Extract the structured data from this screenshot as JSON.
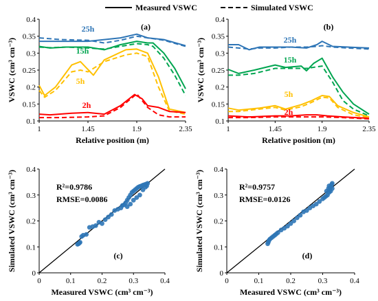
{
  "legend": {
    "measured_label": "Measured VSWC",
    "simulated_label": "Simulated VSWC"
  },
  "chart_data": [
    {
      "type": "line",
      "panel": "(a)",
      "xlabel": "Relative position (m)",
      "ylabel": "VSWC (cm³ cm⁻³)",
      "xlim": [
        1,
        2.35
      ],
      "ylim": [
        0.1,
        0.4
      ],
      "xticks": [
        1,
        1.45,
        1.9,
        2.35
      ],
      "yticks": [
        0.1,
        0.15,
        0.2,
        0.25,
        0.3,
        0.35,
        0.4
      ],
      "grid": false,
      "series": [
        {
          "name": "25h",
          "color": "#2e75b6",
          "measured": [
            [
              1.0,
              0.335
            ],
            [
              1.2,
              0.335
            ],
            [
              1.45,
              0.335
            ],
            [
              1.6,
              0.34
            ],
            [
              1.75,
              0.345
            ],
            [
              1.9,
              0.356
            ],
            [
              2.0,
              0.345
            ],
            [
              2.15,
              0.34
            ],
            [
              2.35,
              0.322
            ]
          ],
          "simulated": [
            [
              1.0,
              0.345
            ],
            [
              1.2,
              0.34
            ],
            [
              1.45,
              0.338
            ],
            [
              1.6,
              0.33
            ],
            [
              1.75,
              0.338
            ],
            [
              1.9,
              0.35
            ],
            [
              2.0,
              0.345
            ],
            [
              2.15,
              0.338
            ],
            [
              2.35,
              0.32
            ]
          ]
        },
        {
          "name": "15h",
          "color": "#00a550",
          "measured": [
            [
              1.0,
              0.32
            ],
            [
              1.1,
              0.315
            ],
            [
              1.25,
              0.318
            ],
            [
              1.45,
              0.318
            ],
            [
              1.6,
              0.31
            ],
            [
              1.75,
              0.325
            ],
            [
              1.9,
              0.335
            ],
            [
              2.0,
              0.33
            ],
            [
              2.05,
              0.33
            ],
            [
              2.15,
              0.3
            ],
            [
              2.25,
              0.255
            ],
            [
              2.35,
              0.195
            ]
          ],
          "simulated": [
            [
              1.0,
              0.318
            ],
            [
              1.1,
              0.316
            ],
            [
              1.25,
              0.318
            ],
            [
              1.45,
              0.315
            ],
            [
              1.6,
              0.312
            ],
            [
              1.75,
              0.32
            ],
            [
              1.9,
              0.328
            ],
            [
              2.0,
              0.325
            ],
            [
              2.05,
              0.32
            ],
            [
              2.15,
              0.285
            ],
            [
              2.25,
              0.235
            ],
            [
              2.35,
              0.175
            ]
          ]
        },
        {
          "name": "5h",
          "color": "#ffc000",
          "measured": [
            [
              1.0,
              0.205
            ],
            [
              1.05,
              0.175
            ],
            [
              1.15,
              0.2
            ],
            [
              1.3,
              0.265
            ],
            [
              1.38,
              0.275
            ],
            [
              1.5,
              0.235
            ],
            [
              1.6,
              0.28
            ],
            [
              1.8,
              0.31
            ],
            [
              1.9,
              0.312
            ],
            [
              2.0,
              0.3
            ],
            [
              2.1,
              0.23
            ],
            [
              2.2,
              0.135
            ],
            [
              2.35,
              0.125
            ]
          ],
          "simulated": [
            [
              1.0,
              0.19
            ],
            [
              1.05,
              0.17
            ],
            [
              1.15,
              0.19
            ],
            [
              1.3,
              0.245
            ],
            [
              1.38,
              0.25
            ],
            [
              1.45,
              0.245
            ],
            [
              1.6,
              0.275
            ],
            [
              1.8,
              0.295
            ],
            [
              1.9,
              0.3
            ],
            [
              2.0,
              0.29
            ],
            [
              2.1,
              0.2
            ],
            [
              2.2,
              0.13
            ],
            [
              2.35,
              0.12
            ]
          ]
        },
        {
          "name": "2h",
          "color": "#ff0000",
          "measured": [
            [
              1.0,
              0.12
            ],
            [
              1.1,
              0.118
            ],
            [
              1.3,
              0.123
            ],
            [
              1.45,
              0.125
            ],
            [
              1.6,
              0.12
            ],
            [
              1.75,
              0.145
            ],
            [
              1.88,
              0.178
            ],
            [
              1.95,
              0.165
            ],
            [
              2.0,
              0.145
            ],
            [
              2.1,
              0.14
            ],
            [
              2.2,
              0.128
            ],
            [
              2.35,
              0.125
            ]
          ],
          "simulated": [
            [
              1.0,
              0.11
            ],
            [
              1.2,
              0.11
            ],
            [
              1.45,
              0.112
            ],
            [
              1.6,
              0.115
            ],
            [
              1.75,
              0.14
            ],
            [
              1.9,
              0.18
            ],
            [
              2.0,
              0.14
            ],
            [
              2.1,
              0.118
            ],
            [
              2.2,
              0.112
            ],
            [
              2.35,
              0.112
            ]
          ]
        }
      ]
    },
    {
      "type": "line",
      "panel": "(b)",
      "xlabel": "Relative position (m)",
      "ylabel": "VSWC (cm³ cm⁻³)",
      "xlim": [
        1,
        2.35
      ],
      "ylim": [
        0.1,
        0.4
      ],
      "xticks": [
        1,
        1.45,
        1.9,
        2.35
      ],
      "yticks": [
        0.1,
        0.15,
        0.2,
        0.25,
        0.3,
        0.35,
        0.4
      ],
      "grid": false,
      "series": [
        {
          "name": "25h",
          "color": "#2e75b6",
          "measured": [
            [
              1.0,
              0.325
            ],
            [
              1.1,
              0.325
            ],
            [
              1.2,
              0.31
            ],
            [
              1.3,
              0.318
            ],
            [
              1.45,
              0.318
            ],
            [
              1.6,
              0.318
            ],
            [
              1.75,
              0.315
            ],
            [
              1.85,
              0.325
            ],
            [
              1.9,
              0.335
            ],
            [
              2.0,
              0.32
            ],
            [
              2.15,
              0.318
            ],
            [
              2.35,
              0.315
            ]
          ],
          "simulated": [
            [
              1.0,
              0.318
            ],
            [
              1.1,
              0.315
            ],
            [
              1.2,
              0.312
            ],
            [
              1.3,
              0.315
            ],
            [
              1.45,
              0.315
            ],
            [
              1.6,
              0.318
            ],
            [
              1.75,
              0.318
            ],
            [
              1.85,
              0.32
            ],
            [
              1.9,
              0.322
            ],
            [
              2.0,
              0.318
            ],
            [
              2.15,
              0.315
            ],
            [
              2.35,
              0.312
            ]
          ]
        },
        {
          "name": "15h",
          "color": "#00a550",
          "measured": [
            [
              1.0,
              0.252
            ],
            [
              1.1,
              0.24
            ],
            [
              1.25,
              0.25
            ],
            [
              1.45,
              0.265
            ],
            [
              1.55,
              0.258
            ],
            [
              1.7,
              0.262
            ],
            [
              1.75,
              0.248
            ],
            [
              1.82,
              0.27
            ],
            [
              1.9,
              0.285
            ],
            [
              2.0,
              0.23
            ],
            [
              2.1,
              0.185
            ],
            [
              2.2,
              0.15
            ],
            [
              2.35,
              0.12
            ]
          ],
          "simulated": [
            [
              1.0,
              0.235
            ],
            [
              1.1,
              0.235
            ],
            [
              1.25,
              0.24
            ],
            [
              1.45,
              0.255
            ],
            [
              1.6,
              0.255
            ],
            [
              1.75,
              0.255
            ],
            [
              1.9,
              0.262
            ],
            [
              2.0,
              0.215
            ],
            [
              2.1,
              0.16
            ],
            [
              2.2,
              0.135
            ],
            [
              2.35,
              0.115
            ]
          ]
        },
        {
          "name": "5h",
          "color": "#ffc000",
          "measured": [
            [
              1.0,
              0.138
            ],
            [
              1.1,
              0.132
            ],
            [
              1.3,
              0.138
            ],
            [
              1.45,
              0.145
            ],
            [
              1.55,
              0.135
            ],
            [
              1.7,
              0.148
            ],
            [
              1.8,
              0.16
            ],
            [
              1.9,
              0.175
            ],
            [
              1.97,
              0.172
            ],
            [
              2.05,
              0.145
            ],
            [
              2.2,
              0.125
            ],
            [
              2.35,
              0.112
            ]
          ],
          "simulated": [
            [
              1.0,
              0.128
            ],
            [
              1.1,
              0.128
            ],
            [
              1.3,
              0.135
            ],
            [
              1.45,
              0.14
            ],
            [
              1.55,
              0.132
            ],
            [
              1.7,
              0.142
            ],
            [
              1.8,
              0.155
            ],
            [
              1.9,
              0.17
            ],
            [
              1.97,
              0.168
            ],
            [
              2.05,
              0.14
            ],
            [
              2.2,
              0.118
            ],
            [
              2.35,
              0.11
            ]
          ]
        },
        {
          "name": "2h",
          "color": "#ff0000",
          "measured": [
            [
              1.0,
              0.115
            ],
            [
              1.2,
              0.112
            ],
            [
              1.45,
              0.115
            ],
            [
              1.6,
              0.115
            ],
            [
              1.75,
              0.118
            ],
            [
              1.85,
              0.118
            ],
            [
              1.95,
              0.115
            ],
            [
              2.1,
              0.112
            ],
            [
              2.35,
              0.108
            ]
          ],
          "simulated": [
            [
              1.0,
              0.11
            ],
            [
              1.2,
              0.11
            ],
            [
              1.45,
              0.112
            ],
            [
              1.6,
              0.112
            ],
            [
              1.75,
              0.112
            ],
            [
              1.9,
              0.112
            ],
            [
              2.1,
              0.11
            ],
            [
              2.35,
              0.106
            ]
          ]
        }
      ]
    },
    {
      "type": "scatter",
      "panel": "(c)",
      "xlabel": "Measured VSWC (cm³ cm⁻³)",
      "ylabel": "Simulated VSWC (cm³ cm⁻³)",
      "xlim": [
        0,
        0.4
      ],
      "ylim": [
        0,
        0.4
      ],
      "xticks": [
        0,
        0.1,
        0.2,
        0.3,
        0.4
      ],
      "yticks": [
        0,
        0.1,
        0.2,
        0.3,
        0.4
      ],
      "r2": "R²=0.9786",
      "rmse": "RMSE=0.0086",
      "color": "#2e75b6",
      "points": [
        [
          0.122,
          0.11
        ],
        [
          0.125,
          0.112
        ],
        [
          0.128,
          0.115
        ],
        [
          0.13,
          0.118
        ],
        [
          0.135,
          0.14
        ],
        [
          0.14,
          0.145
        ],
        [
          0.15,
          0.148
        ],
        [
          0.16,
          0.175
        ],
        [
          0.17,
          0.178
        ],
        [
          0.18,
          0.182
        ],
        [
          0.19,
          0.195
        ],
        [
          0.2,
          0.19
        ],
        [
          0.21,
          0.205
        ],
        [
          0.22,
          0.215
        ],
        [
          0.23,
          0.225
        ],
        [
          0.24,
          0.24
        ],
        [
          0.25,
          0.245
        ],
        [
          0.26,
          0.25
        ],
        [
          0.265,
          0.26
        ],
        [
          0.27,
          0.262
        ],
        [
          0.275,
          0.27
        ],
        [
          0.28,
          0.28
        ],
        [
          0.285,
          0.29
        ],
        [
          0.29,
          0.3
        ],
        [
          0.295,
          0.31
        ],
        [
          0.3,
          0.315
        ],
        [
          0.305,
          0.32
        ],
        [
          0.31,
          0.325
        ],
        [
          0.315,
          0.33
        ],
        [
          0.32,
          0.333
        ],
        [
          0.325,
          0.335
        ],
        [
          0.33,
          0.338
        ],
        [
          0.335,
          0.34
        ],
        [
          0.34,
          0.342
        ],
        [
          0.345,
          0.345
        ],
        [
          0.3,
          0.28
        ],
        [
          0.31,
          0.29
        ],
        [
          0.32,
          0.3
        ],
        [
          0.33,
          0.32
        ],
        [
          0.338,
          0.33
        ],
        [
          0.342,
          0.335
        ],
        [
          0.28,
          0.255
        ],
        [
          0.29,
          0.265
        ]
      ]
    },
    {
      "type": "scatter",
      "panel": "(d)",
      "xlabel": "Measured VSWC (cm³ cm⁻³)",
      "ylabel": "Simulated VSWC (cm³ cm⁻³)",
      "xlim": [
        0,
        0.4
      ],
      "ylim": [
        0,
        0.4
      ],
      "xticks": [
        0,
        0.1,
        0.2,
        0.3,
        0.4
      ],
      "yticks": [
        0,
        0.1,
        0.2,
        0.3,
        0.4
      ],
      "r2": "R²=0.9757",
      "rmse": "RMSE=0.0126",
      "color": "#2e75b6",
      "points": [
        [
          0.128,
          0.112
        ],
        [
          0.13,
          0.118
        ],
        [
          0.132,
          0.125
        ],
        [
          0.135,
          0.13
        ],
        [
          0.14,
          0.135
        ],
        [
          0.145,
          0.14
        ],
        [
          0.15,
          0.145
        ],
        [
          0.155,
          0.15
        ],
        [
          0.16,
          0.155
        ],
        [
          0.17,
          0.165
        ],
        [
          0.18,
          0.172
        ],
        [
          0.19,
          0.18
        ],
        [
          0.2,
          0.19
        ],
        [
          0.21,
          0.2
        ],
        [
          0.22,
          0.212
        ],
        [
          0.23,
          0.222
        ],
        [
          0.24,
          0.235
        ],
        [
          0.25,
          0.24
        ],
        [
          0.26,
          0.25
        ],
        [
          0.27,
          0.258
        ],
        [
          0.28,
          0.265
        ],
        [
          0.29,
          0.275
        ],
        [
          0.3,
          0.285
        ],
        [
          0.31,
          0.295
        ],
        [
          0.315,
          0.3
        ],
        [
          0.32,
          0.31
        ],
        [
          0.322,
          0.32
        ],
        [
          0.325,
          0.33
        ],
        [
          0.328,
          0.34
        ],
        [
          0.33,
          0.345
        ],
        [
          0.32,
          0.335
        ],
        [
          0.318,
          0.325
        ],
        [
          0.312,
          0.315
        ],
        [
          0.305,
          0.29
        ],
        [
          0.325,
          0.315
        ],
        [
          0.33,
          0.325
        ]
      ]
    }
  ]
}
